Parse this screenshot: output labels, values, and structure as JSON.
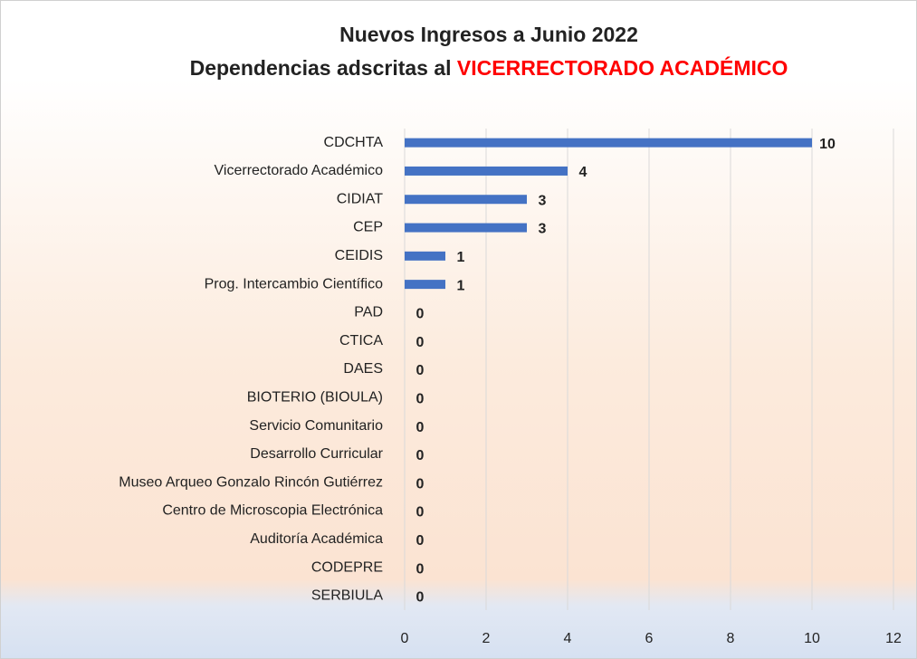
{
  "chart_data": {
    "type": "bar",
    "orientation": "horizontal",
    "title": "Nuevos Ingresos a Junio 2022",
    "subtitle": "Dependencias adscritas al",
    "subtitle_highlight": "VICERRECTORADO ACADÉMICO",
    "categories": [
      "CDCHTA",
      "Vicerrectorado Académico",
      "CIDIAT",
      "CEP",
      "CEIDIS",
      "Prog. Intercambio Científico",
      "PAD",
      "CTICA",
      "DAES",
      "BIOTERIO  (BIOULA)",
      "Servicio Comunitario",
      "Desarrollo Curricular",
      "Museo Arqueo Gonzalo Rincón Gutiérrez",
      "Centro de Microscopia Electrónica",
      "Auditoría Académica",
      "CODEPRE",
      "SERBIULA"
    ],
    "values": [
      10,
      4,
      3,
      3,
      1,
      1,
      0,
      0,
      0,
      0,
      0,
      0,
      0,
      0,
      0,
      0,
      0
    ],
    "color": "#4472c4",
    "xlim": [
      0,
      12
    ],
    "xticks": [
      0,
      2,
      4,
      6,
      8,
      10,
      12
    ],
    "grid": true
  }
}
